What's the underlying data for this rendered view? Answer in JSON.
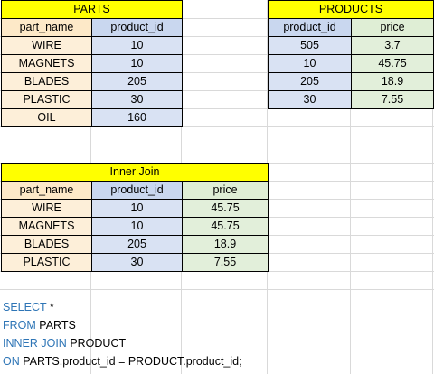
{
  "parts": {
    "title": "PARTS",
    "headers": [
      "part_name",
      "product_id"
    ],
    "rows": [
      [
        "WIRE",
        "10"
      ],
      [
        "MAGNETS",
        "10"
      ],
      [
        "BLADES",
        "205"
      ],
      [
        "PLASTIC",
        "30"
      ],
      [
        "OIL",
        "160"
      ]
    ]
  },
  "products": {
    "title": "PRODUCTS",
    "headers": [
      "product_id",
      "price"
    ],
    "rows": [
      [
        "505",
        "3.7"
      ],
      [
        "10",
        "45.75"
      ],
      [
        "205",
        "18.9"
      ],
      [
        "30",
        "7.55"
      ]
    ]
  },
  "inner_join": {
    "title": "Inner Join",
    "headers": [
      "part_name",
      "product_id",
      "price"
    ],
    "rows": [
      [
        "WIRE",
        "10",
        "45.75"
      ],
      [
        "MAGNETS",
        "10",
        "45.75"
      ],
      [
        "BLADES",
        "205",
        "18.9"
      ],
      [
        "PLASTIC",
        "30",
        "7.55"
      ]
    ]
  },
  "sql": {
    "line1_kw": "SELECT",
    "line1_rest": " *",
    "line2_kw": "FROM",
    "line2_rest": " PARTS",
    "line3_kw": "INNER JOIN",
    "line3_rest": " PRODUCT",
    "line4_kw": "ON",
    "line4_rest": " PARTS.product_id = PRODUCT.product_id;"
  },
  "colors": {
    "title_fill": "#ffff00",
    "part_name_fill": "#fdefd9",
    "product_id_fill": "#d9e2f3",
    "price_fill": "#e2efda",
    "sql_keyword": "#2e75b6"
  }
}
